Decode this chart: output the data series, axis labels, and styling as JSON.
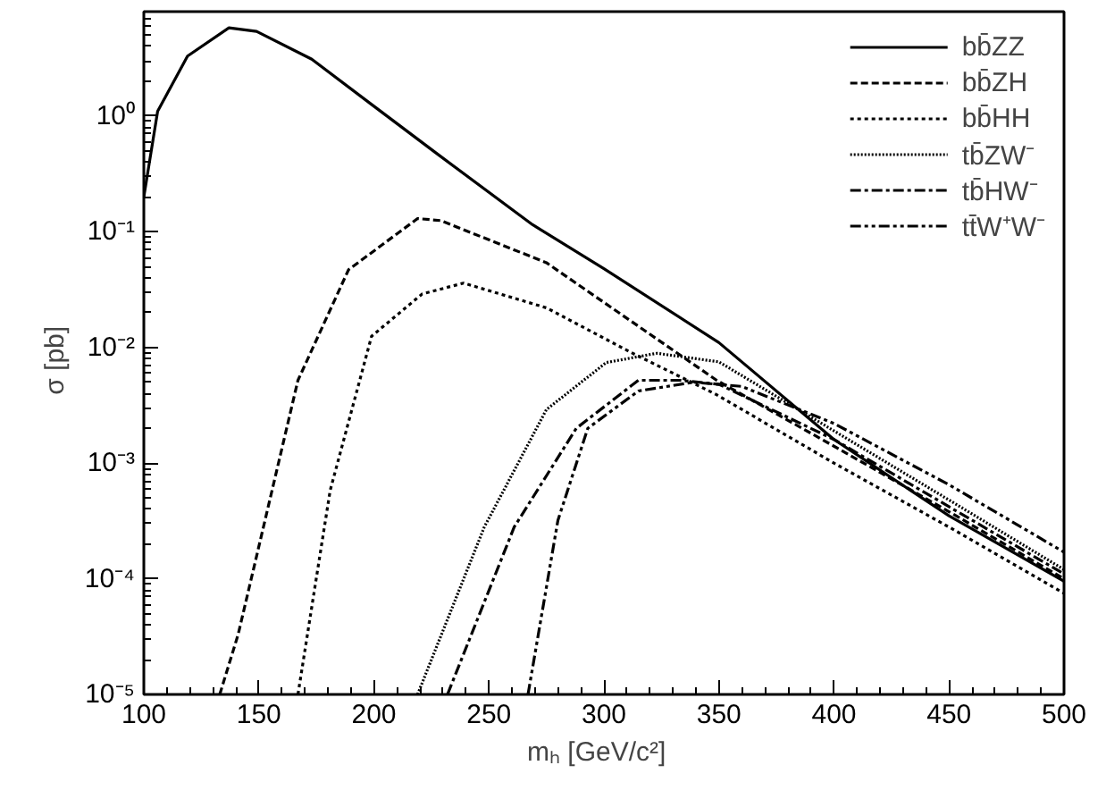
{
  "chart_data": {
    "type": "line",
    "xlabel": "mₕ   [GeV/c²]",
    "ylabel": "σ   [pb]",
    "log": "y",
    "grid": false,
    "legend": "top right",
    "marker": "none",
    "xlim": [
      100,
      500
    ],
    "xticks": [
      100,
      150,
      200,
      250,
      300,
      350,
      400,
      450,
      500
    ],
    "ylim": [
      1e-05,
      8
    ],
    "yticks": [
      {
        "value": 1e-05,
        "label": "10⁻⁵"
      },
      {
        "value": 0.0001,
        "label": "10⁻⁴"
      },
      {
        "value": 0.001,
        "label": "10⁻³"
      },
      {
        "value": 0.01,
        "label": "10⁻²"
      },
      {
        "value": 0.1,
        "label": "10⁻¹"
      },
      {
        "value": 1,
        "label": "10⁰"
      }
    ],
    "series": [
      {
        "name": "bb̄ZZ",
        "color": "#000000",
        "line_style": "solid",
        "x": [
          100,
          106,
          119,
          137,
          149,
          173,
          199,
          227,
          269,
          300,
          350,
          400,
          450,
          500
        ],
        "values": [
          0.2,
          1.1,
          3.3,
          5.8,
          5.4,
          3.1,
          1.26,
          0.48,
          0.115,
          0.048,
          0.011,
          0.0016,
          0.00035,
          9.5e-05
        ]
      },
      {
        "name": "bb̄ZH",
        "color": "#000000",
        "line_style": "dashed",
        "x": [
          133,
          141,
          167,
          189,
          219,
          229,
          275,
          349,
          400,
          450,
          500
        ],
        "values": [
          1e-05,
          3.3e-05,
          0.0052,
          0.047,
          0.13,
          0.125,
          0.054,
          0.0052,
          0.0014,
          0.00038,
          0.0001
        ]
      },
      {
        "name": "bb̄HH",
        "color": "#000000",
        "line_style": "dotted",
        "x": [
          167,
          181,
          199,
          221,
          239,
          275,
          312,
          349,
          400,
          450,
          500
        ],
        "values": [
          1e-05,
          0.00058,
          0.0125,
          0.029,
          0.036,
          0.022,
          0.009,
          0.0039,
          0.001,
          0.00028,
          7.5e-05
        ]
      },
      {
        "name": "tb̄ZW⁻",
        "color": "#000000",
        "line_style": "dotted_fine",
        "x": [
          219,
          248,
          275,
          301,
          323,
          350,
          400,
          450,
          500
        ],
        "values": [
          1e-05,
          0.00028,
          0.0029,
          0.0074,
          0.0089,
          0.0075,
          0.0019,
          0.00048,
          0.00012
        ]
      },
      {
        "name": "tb̄HW⁻",
        "color": "#000000",
        "line_style": "dashdot",
        "x": [
          232,
          261,
          288,
          315,
          333,
          350,
          400,
          450,
          500
        ],
        "values": [
          1e-05,
          0.00028,
          0.002,
          0.0052,
          0.0052,
          0.0048,
          0.0016,
          0.00042,
          0.00011
        ]
      },
      {
        "name": "tt̄W⁺W⁻",
        "color": "#000000",
        "line_style": "dashdotdot",
        "x": [
          267,
          280,
          293,
          315,
          339,
          360,
          400,
          450,
          500
        ],
        "values": [
          1e-05,
          0.00032,
          0.002,
          0.0042,
          0.005,
          0.0046,
          0.0022,
          0.00065,
          0.00017
        ]
      }
    ]
  }
}
